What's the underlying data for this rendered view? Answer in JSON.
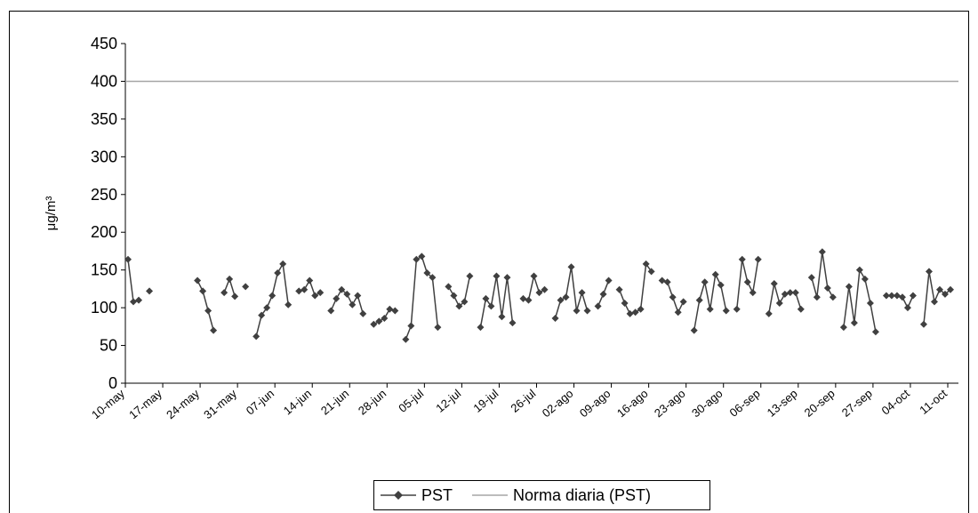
{
  "chart_data": {
    "type": "line",
    "y_label": "μg/m³",
    "categories": [
      "10-may",
      null,
      null,
      null,
      null,
      null,
      null,
      "17-may",
      null,
      null,
      null,
      null,
      null,
      null,
      "24-may",
      null,
      null,
      null,
      null,
      null,
      null,
      "31-may",
      null,
      null,
      null,
      null,
      null,
      null,
      "07-jun",
      null,
      null,
      null,
      null,
      null,
      null,
      "14-jun",
      null,
      null,
      null,
      null,
      null,
      null,
      "21-jun",
      null,
      null,
      null,
      null,
      null,
      null,
      "28-jun",
      null,
      null,
      null,
      null,
      null,
      null,
      "05-jul",
      null,
      null,
      null,
      null,
      null,
      null,
      "12-jul",
      null,
      null,
      null,
      null,
      null,
      null,
      "19-jul",
      null,
      null,
      null,
      null,
      null,
      null,
      "26-jul",
      null,
      null,
      null,
      null,
      null,
      null,
      "02-ago",
      null,
      null,
      null,
      null,
      null,
      null,
      "09-ago",
      null,
      null,
      null,
      null,
      null,
      null,
      "16-ago",
      null,
      null,
      null,
      null,
      null,
      null,
      "23-ago",
      null,
      null,
      null,
      null,
      null,
      null,
      "30-ago",
      null,
      null,
      null,
      null,
      null,
      null,
      "06-sep",
      null,
      null,
      null,
      null,
      null,
      null,
      "13-sep",
      null,
      null,
      null,
      null,
      null,
      null,
      "20-sep",
      null,
      null,
      null,
      null,
      null,
      null,
      "27-sep",
      null,
      null,
      null,
      null,
      null,
      null,
      "04-oct",
      null,
      null,
      null,
      null,
      null,
      null,
      "11-oct",
      null
    ],
    "series": [
      {
        "name": "PST",
        "color": "#404040",
        "marker": "diamond",
        "values": [
          164,
          108,
          110,
          null,
          122,
          null,
          null,
          null,
          null,
          null,
          null,
          null,
          null,
          136,
          122,
          96,
          70,
          null,
          120,
          138,
          115,
          null,
          128,
          null,
          62,
          90,
          100,
          116,
          146,
          158,
          104,
          null,
          122,
          124,
          136,
          116,
          120,
          null,
          96,
          112,
          124,
          118,
          104,
          116,
          92,
          null,
          78,
          82,
          86,
          98,
          96,
          null,
          58,
          76,
          164,
          168,
          146,
          140,
          74,
          null,
          128,
          116,
          102,
          108,
          142,
          null,
          74,
          112,
          102,
          142,
          88,
          140,
          80,
          null,
          112,
          110,
          142,
          120,
          124,
          null,
          86,
          110,
          114,
          154,
          96,
          120,
          96,
          null,
          102,
          118,
          136,
          null,
          124,
          106,
          92,
          94,
          98,
          158,
          148,
          null,
          136,
          134,
          114,
          94,
          108,
          null,
          70,
          110,
          134,
          98,
          144,
          130,
          96,
          null,
          98,
          164,
          134,
          120,
          164,
          null,
          92,
          132,
          106,
          118,
          120,
          120,
          98,
          null,
          140,
          114,
          174,
          126,
          114,
          null,
          74,
          128,
          80,
          150,
          138,
          106,
          68,
          null,
          116,
          116,
          116,
          114,
          100,
          116,
          null,
          78,
          148,
          108,
          124,
          118,
          124,
          null
        ]
      },
      {
        "name": "Norma diaria (PST)",
        "color": "#a6a6a6",
        "value": 400
      }
    ],
    "ylim": [
      0,
      450
    ],
    "yticks": [
      0,
      50,
      100,
      150,
      200,
      250,
      300,
      350,
      400,
      450
    ],
    "legend": "bottom"
  }
}
